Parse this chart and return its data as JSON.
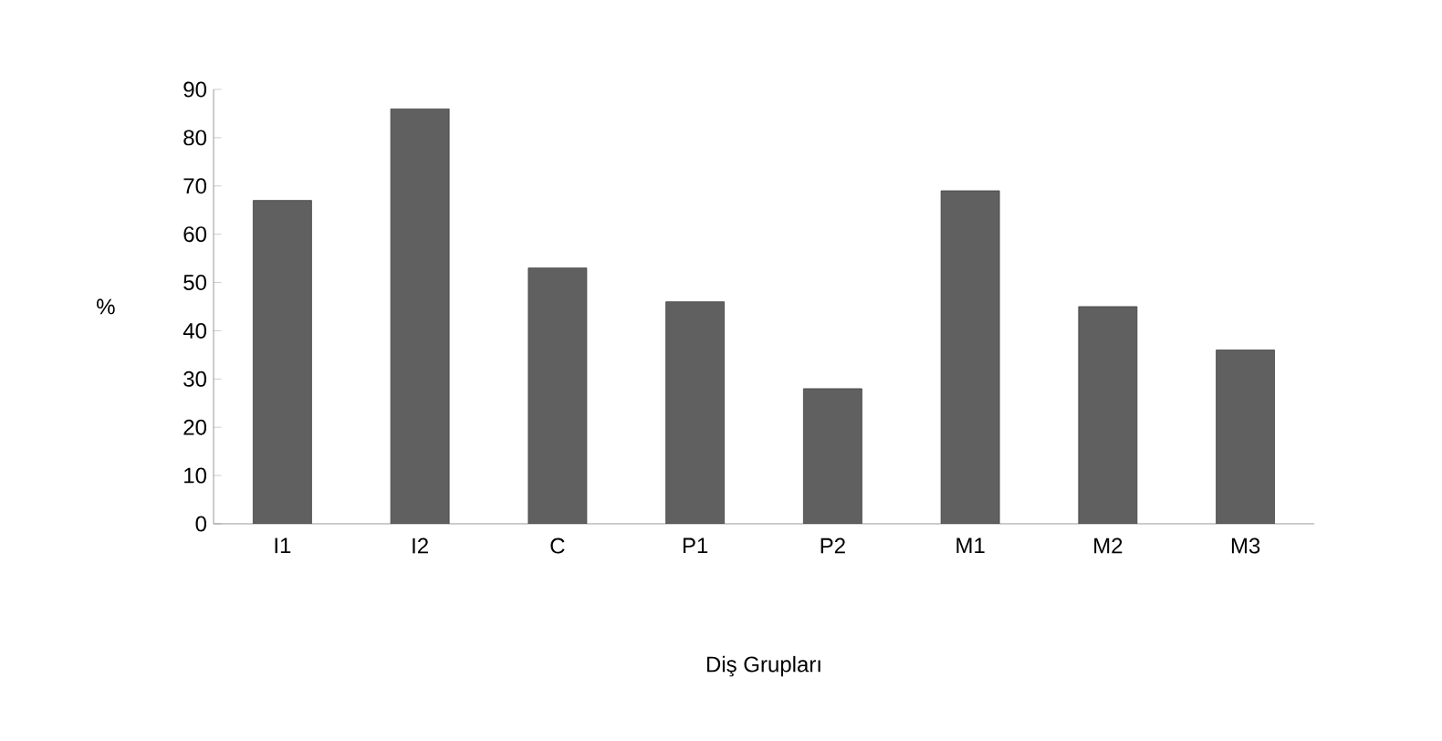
{
  "chart_data": {
    "type": "bar",
    "xlabel": "Diş Grupları",
    "ylabel": "%",
    "categories": [
      "I1",
      "I2",
      "C",
      "P1",
      "P2",
      "M1",
      "M2",
      "M3"
    ],
    "values": [
      67,
      86,
      53,
      46,
      28,
      69,
      45,
      36
    ],
    "color": "#606060",
    "ylim": [
      0,
      90
    ],
    "yticks": [
      0,
      10,
      20,
      30,
      40,
      50,
      60,
      70,
      80,
      90
    ],
    "grid": false
  }
}
